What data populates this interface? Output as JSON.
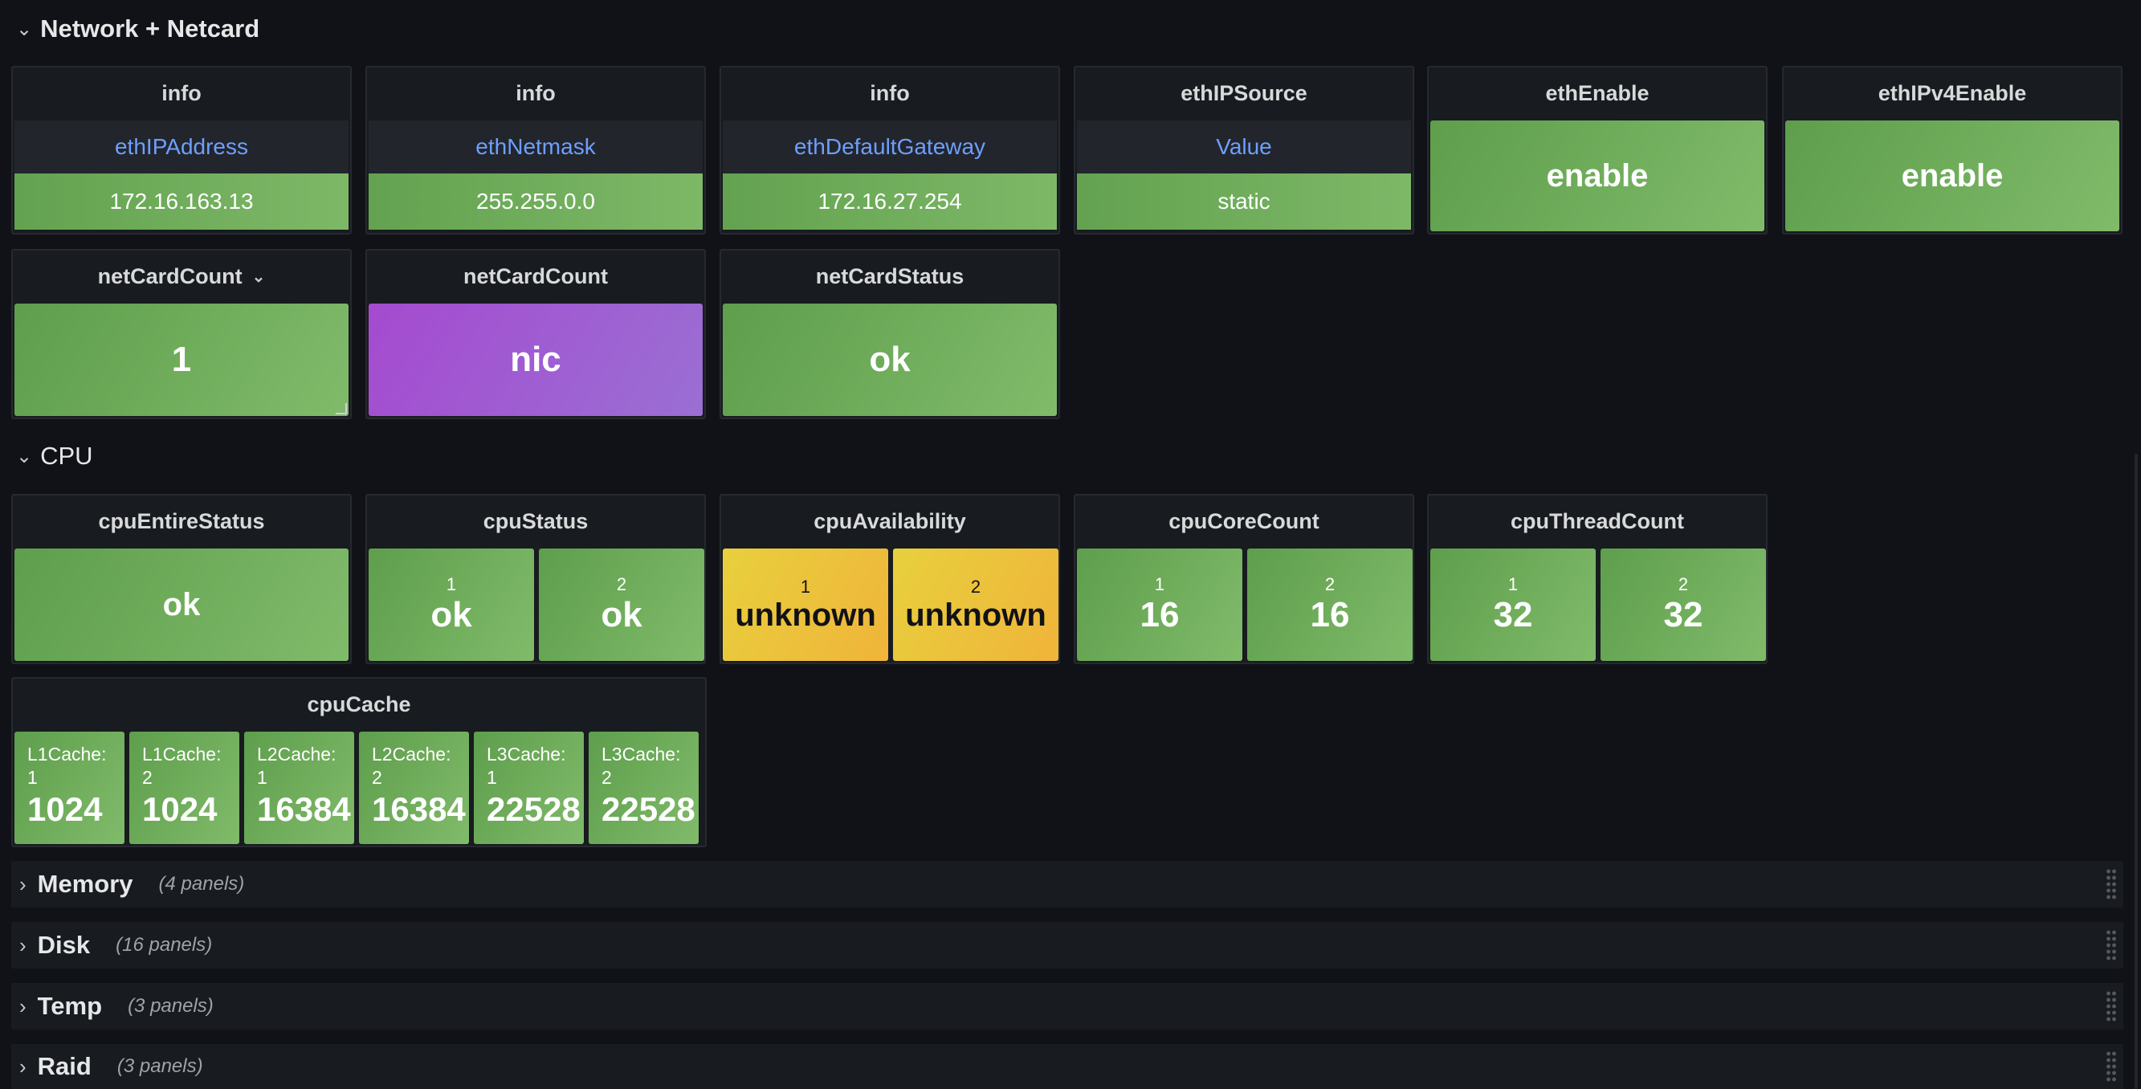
{
  "network_row": {
    "title": "Network + Netcard"
  },
  "info_panels": [
    {
      "title": "info",
      "header": "ethIPAddress",
      "value": "172.16.163.13"
    },
    {
      "title": "info",
      "header": "ethNetmask",
      "value": "255.255.0.0"
    },
    {
      "title": "info",
      "header": "ethDefaultGateway",
      "value": "172.16.27.254"
    },
    {
      "title": "ethIPSource",
      "header": "Value",
      "value": "static"
    }
  ],
  "eth_enable": {
    "title": "ethEnable",
    "value": "enable"
  },
  "eth_ipv4_enable": {
    "title": "ethIPv4Enable",
    "value": "enable"
  },
  "netcard_count": {
    "title": "netCardCount",
    "value": "1"
  },
  "netcard_name": {
    "title": "netCardCount",
    "value": "nic"
  },
  "netcard_status": {
    "title": "netCardStatus",
    "value": "ok"
  },
  "cpu_row": {
    "title": "CPU"
  },
  "cpu_entire_status": {
    "title": "cpuEntireStatus",
    "value": "ok"
  },
  "cpu_status": {
    "title": "cpuStatus",
    "items": [
      {
        "label": "1",
        "value": "ok"
      },
      {
        "label": "2",
        "value": "ok"
      }
    ]
  },
  "cpu_availability": {
    "title": "cpuAvailability",
    "items": [
      {
        "label": "1",
        "value": "unknown"
      },
      {
        "label": "2",
        "value": "unknown"
      }
    ]
  },
  "cpu_core_count": {
    "title": "cpuCoreCount",
    "items": [
      {
        "label": "1",
        "value": "16"
      },
      {
        "label": "2",
        "value": "16"
      }
    ]
  },
  "cpu_thread_count": {
    "title": "cpuThreadCount",
    "items": [
      {
        "label": "1",
        "value": "32"
      },
      {
        "label": "2",
        "value": "32"
      }
    ]
  },
  "cpu_cache": {
    "title": "cpuCache",
    "items": [
      {
        "label_a": "L1Cache:",
        "label_b": "1",
        "value": "1024"
      },
      {
        "label_a": "L1Cache:",
        "label_b": "2",
        "value": "1024"
      },
      {
        "label_a": "L2Cache:",
        "label_b": "1",
        "value": "16384"
      },
      {
        "label_a": "L2Cache:",
        "label_b": "2",
        "value": "16384"
      },
      {
        "label_a": "L3Cache:",
        "label_b": "1",
        "value": "22528"
      },
      {
        "label_a": "L3Cache:",
        "label_b": "2",
        "value": "22528"
      }
    ]
  },
  "collapsed_rows": [
    {
      "title": "Memory",
      "count": "(4 panels)"
    },
    {
      "title": "Disk",
      "count": "(16 panels)"
    },
    {
      "title": "Temp",
      "count": "(3 panels)"
    },
    {
      "title": "Raid",
      "count": "(3 panels)"
    }
  ],
  "colors": {
    "ok_green": "#73bf69",
    "purple": "#a352cc",
    "yellow": "#f2cc0c",
    "link_blue": "#6e9fff",
    "background": "#111217"
  },
  "icons": {
    "expanded": "chevron-down-icon",
    "collapsed": "chevron-right-icon",
    "drag": "drag-handle-icon"
  }
}
